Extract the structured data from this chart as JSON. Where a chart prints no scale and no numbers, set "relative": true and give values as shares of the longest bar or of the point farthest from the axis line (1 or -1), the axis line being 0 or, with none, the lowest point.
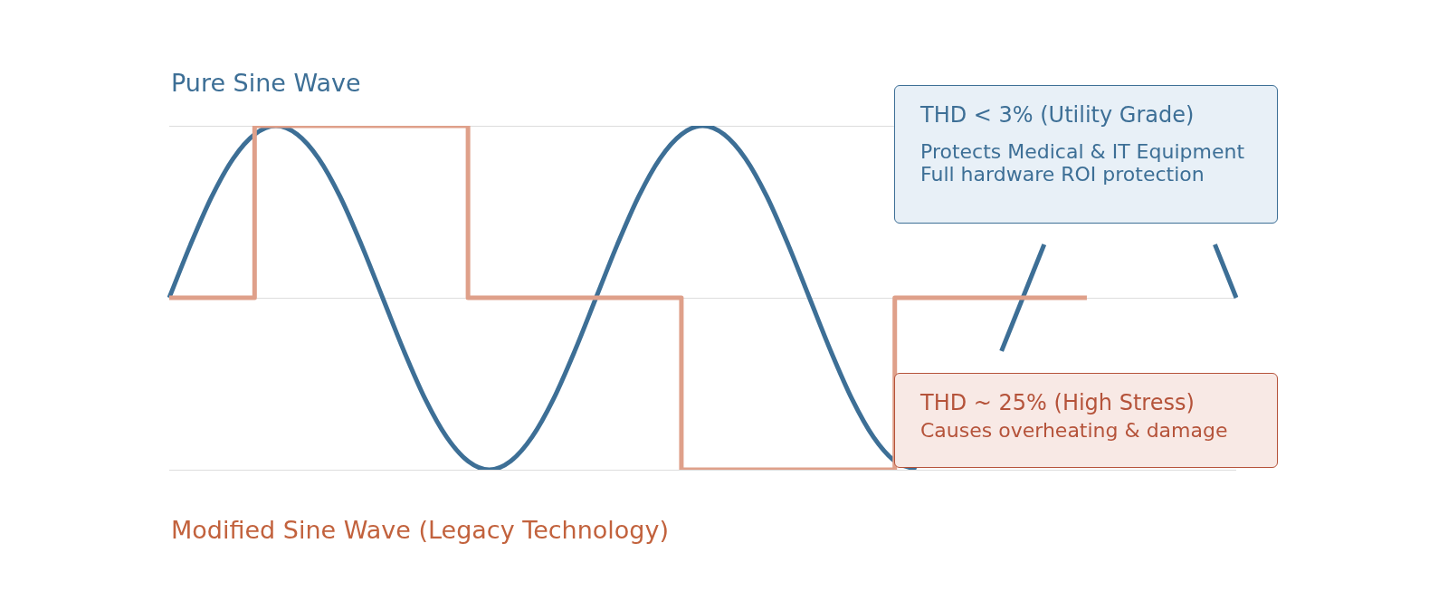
{
  "chart_data": {
    "type": "line",
    "relative": true,
    "grid": "y",
    "legend": false,
    "marker": "none",
    "categories": [
      null,
      null,
      null,
      null,
      null,
      null,
      null,
      null,
      null,
      null,
      null,
      null,
      null,
      null,
      null,
      null,
      null,
      null,
      null,
      null,
      null,
      null,
      null,
      null,
      null,
      null,
      null,
      null,
      null,
      null,
      null,
      null,
      null,
      null,
      null,
      null,
      null,
      null,
      null,
      null,
      null,
      null,
      null,
      null,
      null,
      null,
      null,
      null,
      null,
      null,
      null
    ],
    "series": [
      {
        "name": "Pure Sine Wave",
        "color": "#3d6f96",
        "values": [
          0,
          0.31,
          0.59,
          0.81,
          0.95,
          1,
          0.95,
          0.81,
          0.59,
          0.31,
          0,
          -0.31,
          -0.59,
          -0.81,
          -0.95,
          -1,
          -0.95,
          -0.81,
          -0.59,
          -0.31,
          0,
          0.31,
          0.59,
          0.81,
          0.95,
          1,
          0.95,
          0.81,
          0.59,
          0.31,
          0,
          -0.31,
          -0.59,
          -0.81,
          -0.95,
          -1,
          null,
          null,
          null,
          -0.31,
          0,
          0.31,
          null,
          null,
          null,
          null,
          null,
          null,
          null,
          0.31,
          0
        ]
      },
      {
        "name": "Modified Sine Wave (Legacy Technology)",
        "color": "#dfa08a",
        "type": "step",
        "values": [
          0,
          0,
          0,
          0,
          1,
          1,
          1,
          1,
          1,
          1,
          1,
          1,
          1,
          1,
          0,
          0,
          0,
          0,
          0,
          0,
          0,
          0,
          0,
          0,
          -1,
          -1,
          -1,
          -1,
          -1,
          -1,
          -1,
          -1,
          -1,
          -1,
          0,
          0,
          0,
          0,
          0,
          0,
          0,
          0,
          0,
          0,
          null,
          null,
          null,
          null,
          null,
          null,
          null
        ]
      }
    ],
    "annotations": [
      "THD < 3% (Utility Grade)",
      "Protects Medical & IT Equipment",
      "Full hardware ROI protection",
      "THD ~ 25% (High Stress)",
      "Causes overheating & damage"
    ]
  }
}
